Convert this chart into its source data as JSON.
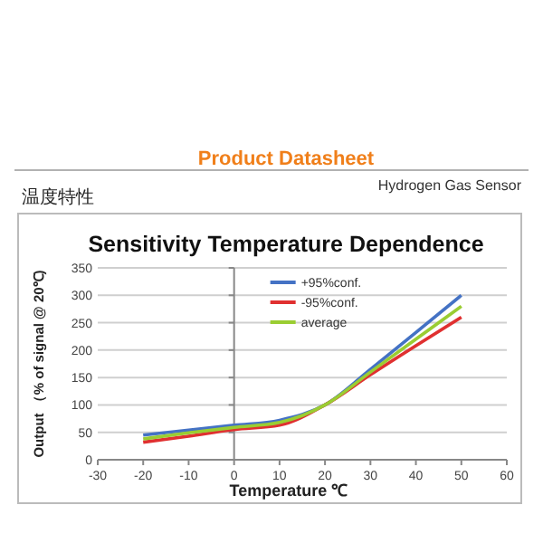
{
  "chart_data": {
    "type": "line",
    "title": "Sensitivity Temperature Dependence",
    "subtitle": "温度特性",
    "annotations": [
      "Product Datasheet",
      "Hydrogen Gas Sensor"
    ],
    "xlabel": "Temperature ℃",
    "ylabel": "Output （% of signal @ 20℃)",
    "x": [
      -20,
      -10,
      0,
      10,
      20,
      30,
      40,
      50
    ],
    "series": [
      {
        "name": "+95%conf.",
        "color": "#4472c4",
        "values": [
          45,
          54,
          63,
          72,
          100,
          165,
          232,
          300
        ]
      },
      {
        "name": "-95%conf.",
        "color": "#e03030",
        "values": [
          32,
          43,
          55,
          63,
          100,
          155,
          208,
          260
        ]
      },
      {
        "name": "average",
        "color": "#9acd32",
        "values": [
          38,
          49,
          59,
          68,
          100,
          160,
          220,
          280
        ]
      }
    ],
    "xlim": [
      -30,
      60
    ],
    "xticks": [
      -30,
      -20,
      -10,
      0,
      10,
      20,
      30,
      40,
      50,
      60
    ],
    "ylim": [
      0,
      350
    ],
    "yticks": [
      0,
      50,
      100,
      150,
      200,
      250,
      300,
      350
    ],
    "grid": "y",
    "legend": "top",
    "marker": "none",
    "line_style": "solid"
  }
}
